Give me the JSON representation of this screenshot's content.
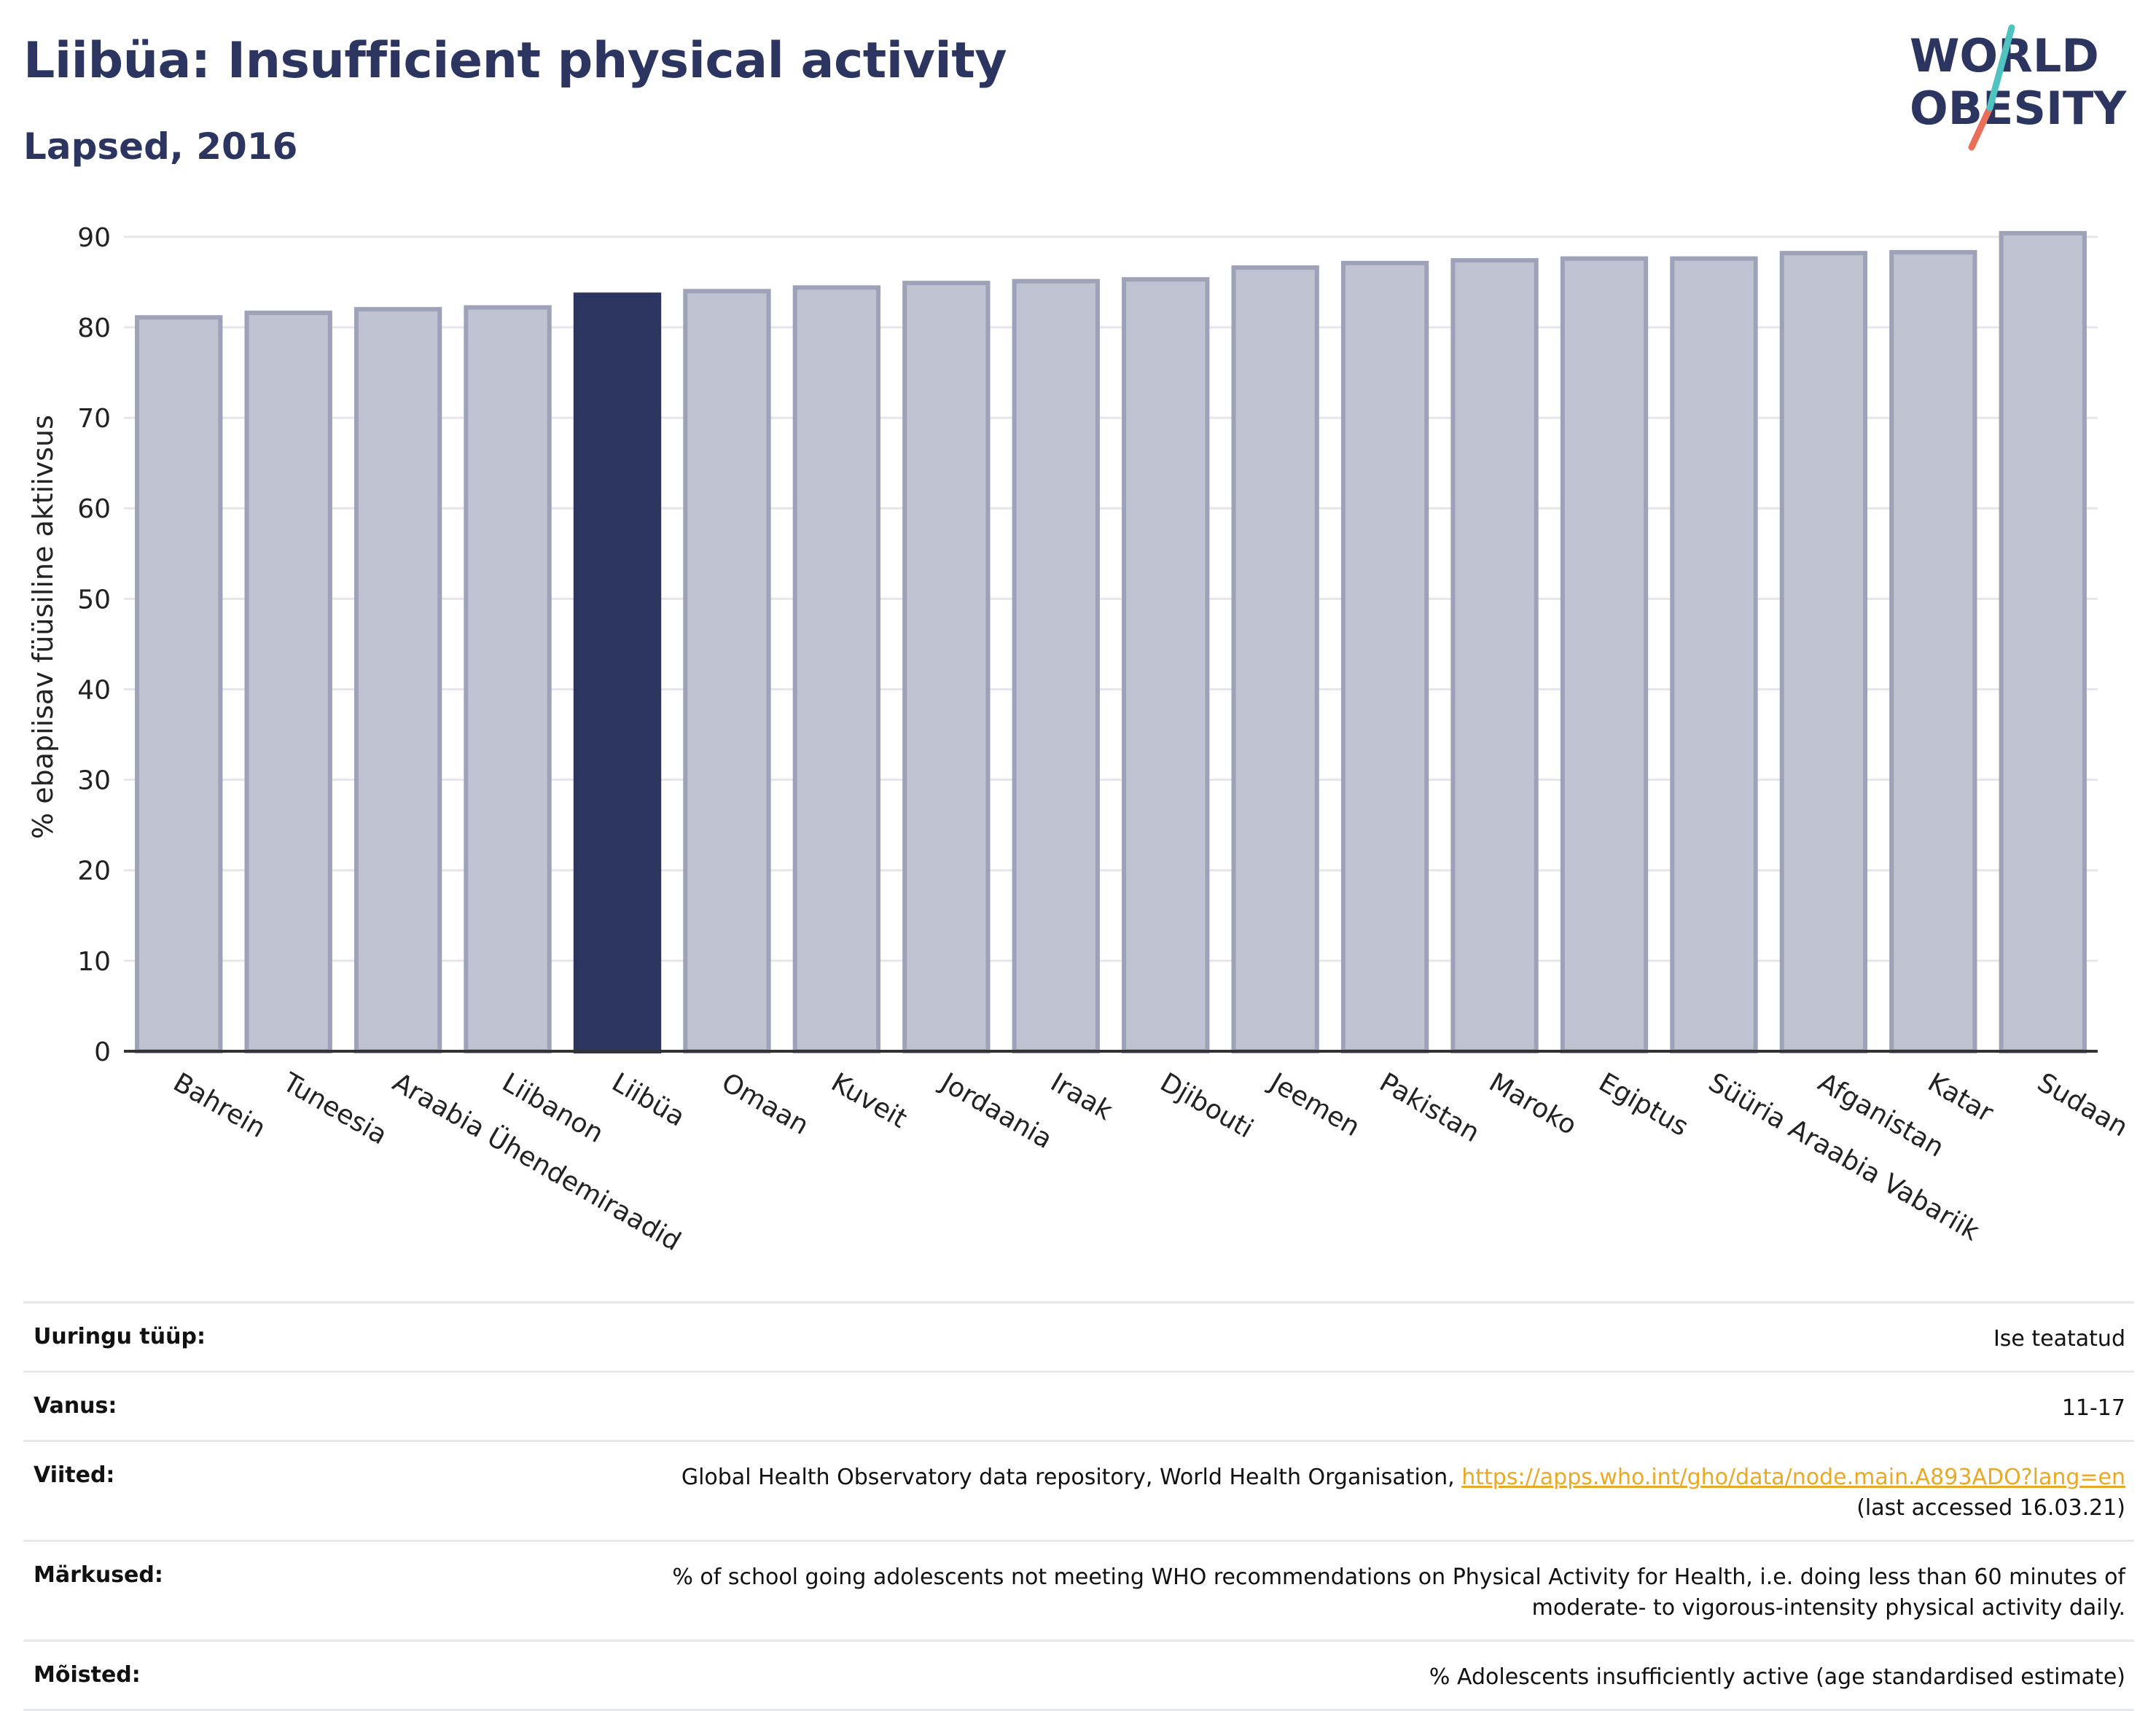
{
  "header": {
    "title": "Liibüa: Insufficient physical activity",
    "subtitle": "Lapsed, 2016"
  },
  "logo": {
    "line1": "WORLD",
    "line2": "OBESITY"
  },
  "chart_data": {
    "type": "bar",
    "ylabel": "% ebapiisav füüsiline aktiivsus",
    "ylim": [
      0,
      92
    ],
    "yticks": [
      0,
      10,
      20,
      30,
      40,
      50,
      60,
      70,
      80,
      90
    ],
    "grid": true,
    "highlight": "Liibüa",
    "colors": {
      "bar": "#bfc2d0",
      "bar_border": "#9da2b8",
      "highlight": "#2b3560"
    },
    "categories": [
      "Bahrein",
      "Tuneesia",
      "Araabia Ühendemiraadid",
      "Liibanon",
      "Liibüa",
      "Omaan",
      "Kuveit",
      "Jordaania",
      "Iraak",
      "Djibouti",
      "Jeemen",
      "Pakistan",
      "Maroko",
      "Egiptus",
      "Süüria Araabia Vabariik",
      "Afganistan",
      "Katar",
      "Sudaan"
    ],
    "values": [
      81.1,
      81.6,
      82.0,
      82.2,
      83.6,
      84.0,
      84.4,
      84.9,
      85.1,
      85.3,
      86.6,
      87.1,
      87.4,
      87.6,
      87.6,
      88.2,
      88.3,
      90.4
    ]
  },
  "info": {
    "rows": [
      {
        "label": "Uuringu tüüp:",
        "value": "Ise teatatud"
      },
      {
        "label": "Vanus:",
        "value": "11-17"
      },
      {
        "label": "Viited:",
        "value": "Global Health Observatory data repository, World Health Organisation,",
        "link": "https://apps.who.int/gho/data/node.main.A893ADO?lang=en",
        "value_after": "(last accessed 16.03.21)"
      },
      {
        "label": "Märkused:",
        "value": "% of school going adolescents not meeting WHO recommendations on Physical Activity for Health, i.e. doing less than 60 minutes of",
        "value_after": "moderate- to vigorous-intensity physical activity daily."
      },
      {
        "label": "Mõisted:",
        "value": "% Adolescents insufficiently active (age standardised estimate)"
      }
    ]
  }
}
